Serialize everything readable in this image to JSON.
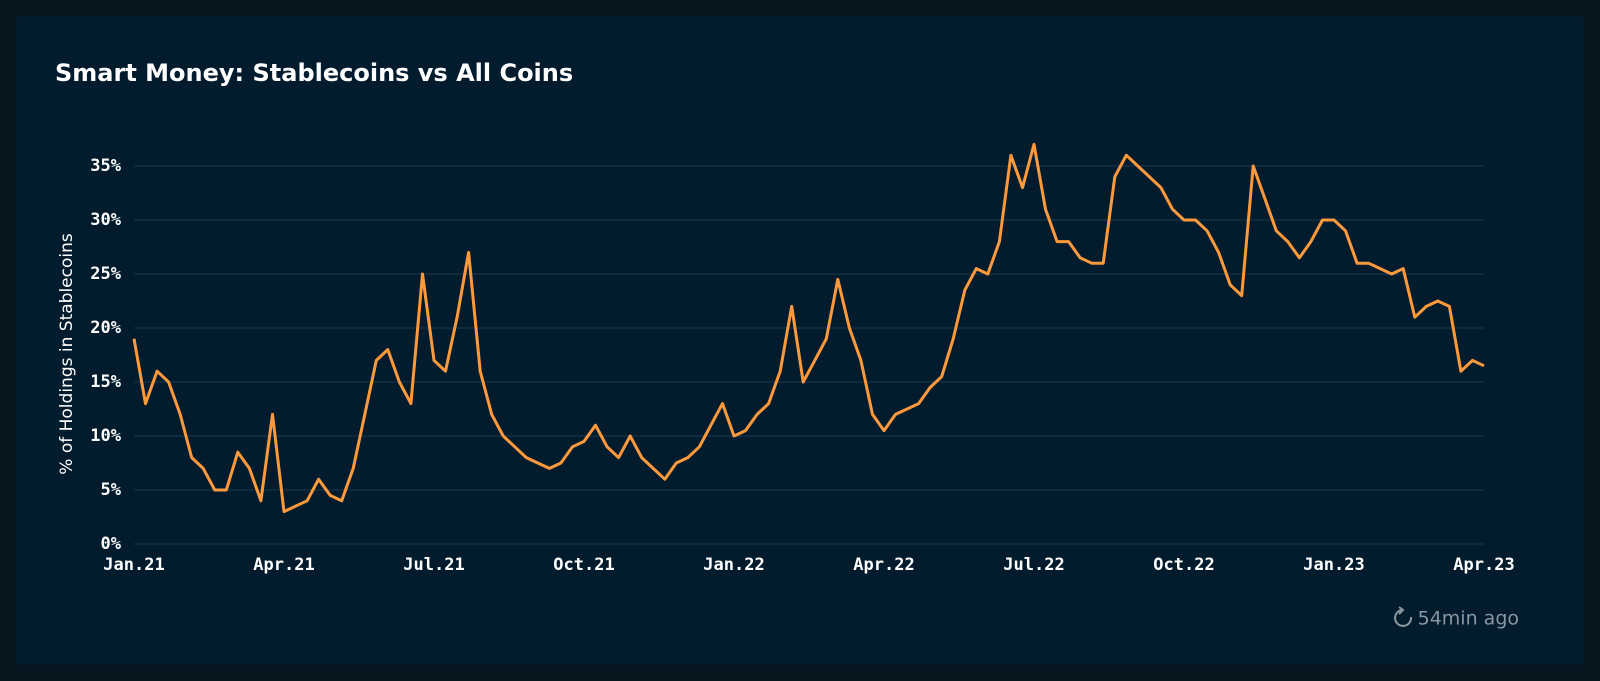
{
  "chart_data": {
    "type": "line",
    "title": "Smart Money: Stablecoins vs All Coins",
    "y_label": "% of Holdings in Stablecoins",
    "categories": [
      "Jan.21",
      null,
      null,
      null,
      null,
      null,
      null,
      null,
      null,
      null,
      null,
      null,
      null,
      "Apr.21",
      null,
      null,
      null,
      null,
      null,
      null,
      null,
      null,
      null,
      null,
      null,
      null,
      "Jul.21",
      null,
      null,
      null,
      null,
      null,
      null,
      null,
      null,
      null,
      null,
      null,
      null,
      "Oct.21",
      null,
      null,
      null,
      null,
      null,
      null,
      null,
      null,
      null,
      null,
      null,
      null,
      "Jan.22",
      null,
      null,
      null,
      null,
      null,
      null,
      null,
      null,
      null,
      null,
      null,
      null,
      "Apr.22",
      null,
      null,
      null,
      null,
      null,
      null,
      null,
      null,
      null,
      null,
      null,
      null,
      "Jul.22",
      null,
      null,
      null,
      null,
      null,
      null,
      null,
      null,
      null,
      null,
      null,
      null,
      "Oct.22",
      null,
      null,
      null,
      null,
      null,
      null,
      null,
      null,
      null,
      null,
      null,
      null,
      "Jan.23",
      null,
      null,
      null,
      null,
      null,
      null,
      null,
      null,
      null,
      null,
      null,
      null,
      "Apr.23"
    ],
    "series": [
      {
        "name": "Stablecoins",
        "color": "#ff9a3c",
        "values": [
          19,
          13,
          16,
          15,
          12,
          8,
          7,
          5,
          5,
          8.5,
          7,
          4,
          12,
          3,
          3.5,
          4,
          6,
          4.5,
          4,
          7,
          12,
          17,
          18,
          15,
          13,
          25,
          17,
          16,
          21,
          27,
          16,
          12,
          10,
          9,
          8,
          7.5,
          7,
          7.5,
          9,
          9.5,
          11,
          9,
          8,
          10,
          8,
          7,
          6,
          7.5,
          8,
          9,
          11,
          13,
          10,
          10.5,
          12,
          13,
          16,
          22,
          15,
          17,
          19,
          24.5,
          20,
          17,
          12,
          10.5,
          12,
          12.5,
          13,
          14.5,
          15.5,
          19,
          23.5,
          25.5,
          25,
          28,
          36,
          33,
          37,
          31,
          28,
          28,
          26.5,
          26,
          26,
          34,
          36,
          35,
          34,
          33,
          31,
          30,
          30,
          29,
          27,
          24,
          23,
          35,
          32,
          29,
          28,
          26.5,
          28,
          30,
          30,
          29,
          26,
          26,
          25.5,
          25,
          25.5,
          21,
          22,
          22.5,
          22,
          16,
          17,
          16.5
        ]
      }
    ],
    "ylim": [
      0,
      38
    ],
    "yticks": [
      {
        "value": 0,
        "label": "0%"
      },
      {
        "value": 5,
        "label": "5%"
      },
      {
        "value": 10,
        "label": "10%"
      },
      {
        "value": 15,
        "label": "15%"
      },
      {
        "value": 20,
        "label": "20%"
      },
      {
        "value": 25,
        "label": "25%"
      },
      {
        "value": 30,
        "label": "30%"
      },
      {
        "value": 35,
        "label": "35%"
      }
    ],
    "grid": true
  },
  "footer": {
    "updated": "54min ago"
  }
}
